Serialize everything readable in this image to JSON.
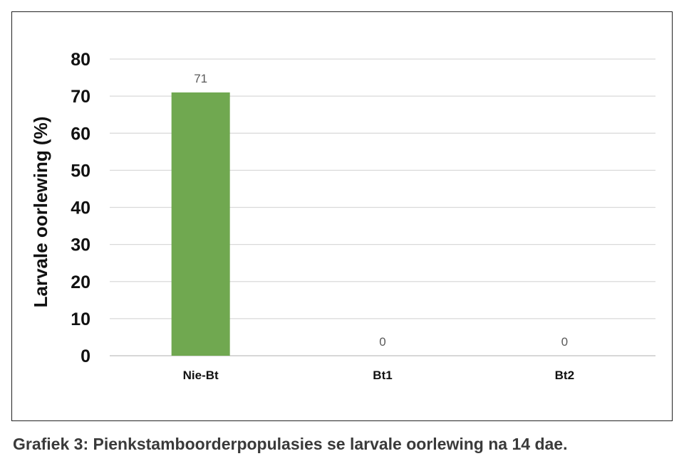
{
  "caption": "Grafiek 3: Pienkstamboorderpopulasies se larvale oorlewing na 14 dae.",
  "chart_data": {
    "type": "bar",
    "title": "",
    "xlabel": "",
    "ylabel": "Larvale oorlewing (%)",
    "ylim": [
      0,
      80
    ],
    "yticks": [
      0,
      10,
      20,
      30,
      40,
      50,
      60,
      70,
      80
    ],
    "grid": true,
    "categories": [
      "Nie-Bt",
      "Bt1",
      "Bt2"
    ],
    "values": [
      71,
      0,
      0
    ],
    "data_labels": [
      "71",
      "0",
      "0"
    ],
    "bar_color": "#70a850",
    "grid_color": "#d9d9d9",
    "axis_color": "#bfbfbf"
  }
}
